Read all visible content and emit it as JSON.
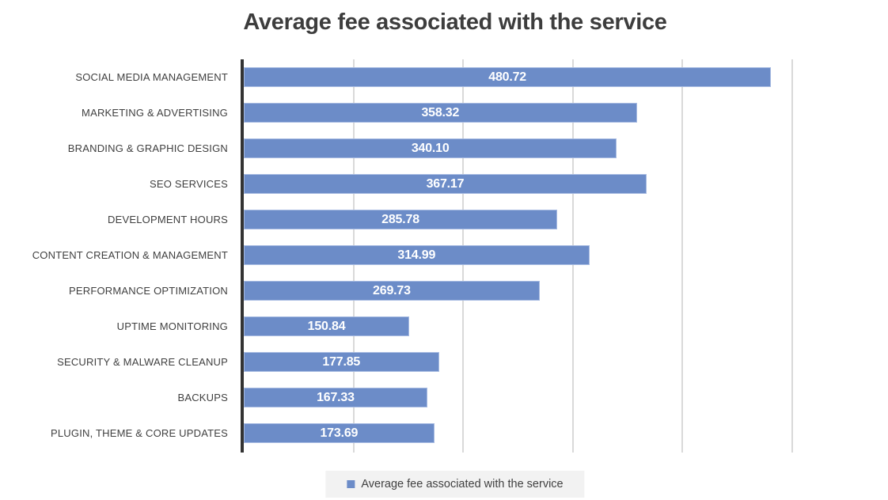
{
  "colors": {
    "bar": "#6C8CC8",
    "bar_border": "#A6BAE1",
    "gridline": "#D9D9D9",
    "axis": "#333333",
    "title_text": "#3D3D3D",
    "label_text": "#404040",
    "value_text": "#FFFFFF",
    "legend_bg": "#F2F2F2"
  },
  "legend": {
    "label": "Average fee associated with the service"
  },
  "chart_data": {
    "type": "bar",
    "orientation": "horizontal",
    "title": "Average fee associated with the service",
    "categories": [
      "SOCIAL MEDIA MANAGEMENT",
      "MARKETING & ADVERTISING",
      "BRANDING & GRAPHIC DESIGN",
      "SEO SERVICES",
      "DEVELOPMENT HOURS",
      "CONTENT CREATION & MANAGEMENT",
      "PERFORMANCE OPTIMIZATION",
      "UPTIME MONITORING",
      "SECURITY & MALWARE CLEANUP",
      "BACKUPS",
      "PLUGIN, THEME & CORE UPDATES"
    ],
    "values": [
      480.72,
      358.32,
      340.1,
      367.17,
      285.78,
      314.99,
      269.73,
      150.84,
      177.85,
      167.33,
      173.69
    ],
    "value_labels": [
      "480.72",
      "358.32",
      "340.10",
      "367.17",
      "285.78",
      "314.99",
      "269.73",
      "150.84",
      "177.85",
      "167.33",
      "173.69"
    ],
    "xlabel": "",
    "ylabel": "",
    "xlim": [
      0,
      500
    ],
    "gridline_interval": 100,
    "grid": true,
    "tick_labels_shown": false,
    "legend_position": "bottom"
  }
}
